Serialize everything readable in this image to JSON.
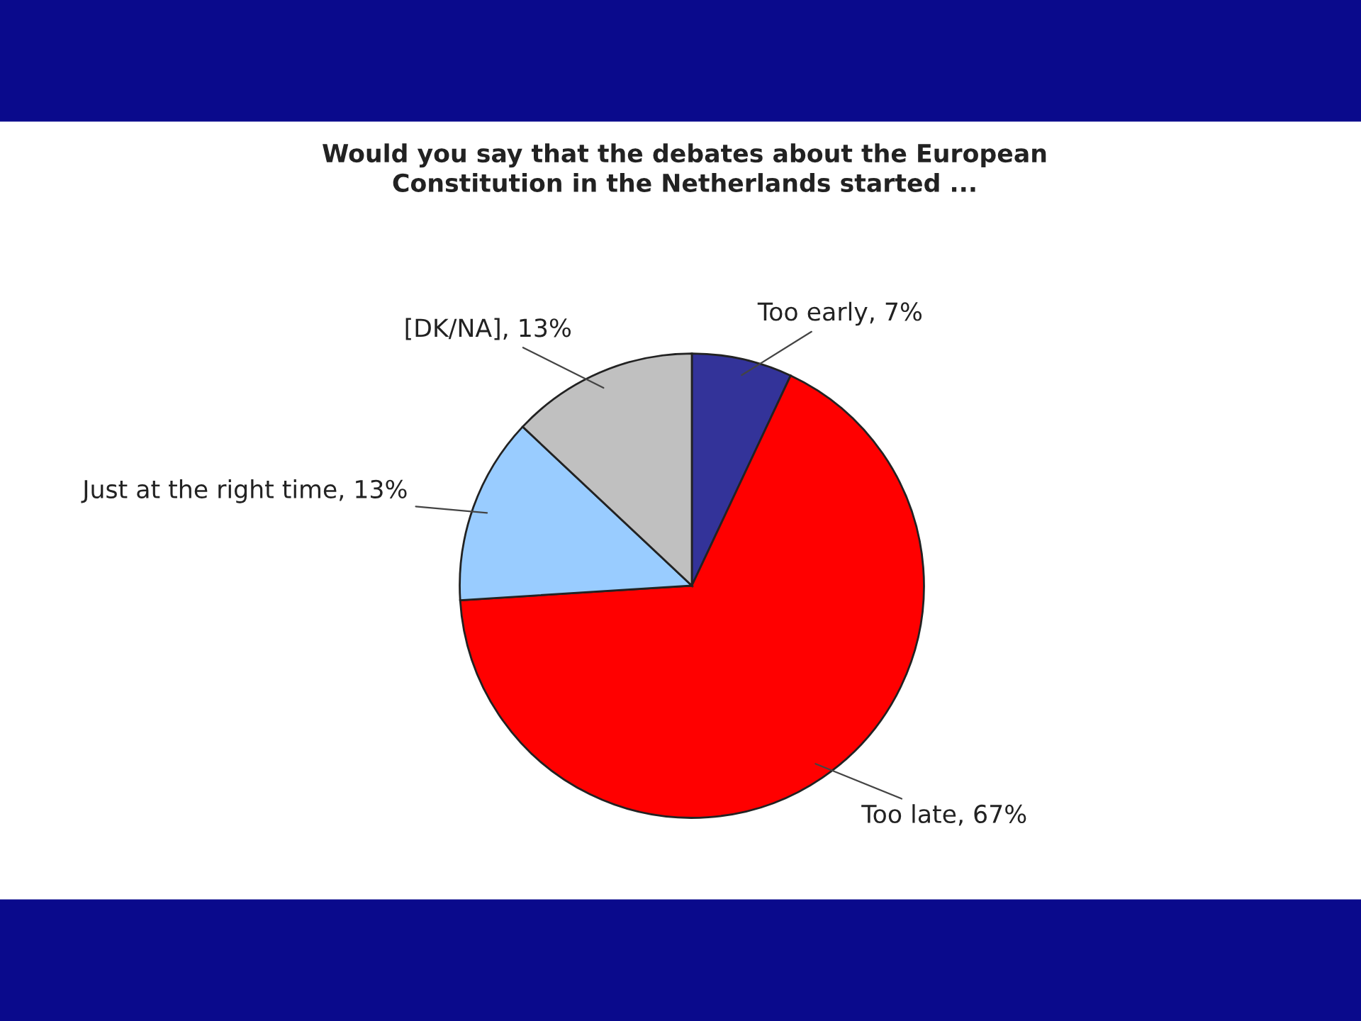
{
  "chart_data": {
    "type": "pie",
    "title": "Would you say that the debates about the European\nConstitution in the Netherlands started ...",
    "categories": [
      "Too early",
      "Too late",
      "Just at the right time",
      "[DK/NA]"
    ],
    "values": [
      7,
      67,
      13,
      13
    ],
    "value_labels": [
      "7%",
      "67%",
      "13%",
      "13%"
    ],
    "colors": [
      "#333399",
      "#ff0000",
      "#99ccff",
      "#c0c0c0"
    ]
  }
}
